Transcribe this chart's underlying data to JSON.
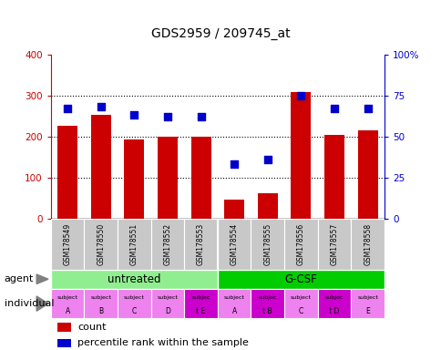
{
  "title": "GDS2959 / 209745_at",
  "samples": [
    "GSM178549",
    "GSM178550",
    "GSM178551",
    "GSM178552",
    "GSM178553",
    "GSM178554",
    "GSM178555",
    "GSM178556",
    "GSM178557",
    "GSM178558"
  ],
  "counts": [
    225,
    252,
    193,
    200,
    200,
    47,
    62,
    307,
    205,
    215
  ],
  "percentile_ranks": [
    67,
    68,
    63,
    62,
    62,
    33,
    36,
    75,
    67,
    67
  ],
  "individual_highlight": [
    4,
    6,
    8
  ],
  "bar_color": "#CC0000",
  "dot_color": "#0000CC",
  "ylim_left": [
    0,
    400
  ],
  "ylim_right": [
    0,
    100
  ],
  "yticks_left": [
    0,
    100,
    200,
    300,
    400
  ],
  "yticks_right": [
    0,
    25,
    50,
    75,
    100
  ],
  "ytick_labels_right": [
    "0",
    "25",
    "50",
    "75",
    "100%"
  ],
  "grid_values": [
    100,
    200,
    300
  ],
  "bg_sample_color": "#C8C8C8",
  "agent_color_untreated": "#90EE90",
  "agent_color_gcsf": "#00CC00",
  "individual_row_color_normal": "#EE82EE",
  "individual_row_color_highlight": "#CC00CC",
  "individuals_top": [
    "subject",
    "subject",
    "subject",
    "subject",
    "subjec",
    "subject",
    "subjec",
    "subject",
    "subjec",
    "subject"
  ],
  "individuals_bot": [
    "A",
    "B",
    "C",
    "D",
    "t E",
    "A",
    "t B",
    "C",
    "t D",
    "E"
  ]
}
